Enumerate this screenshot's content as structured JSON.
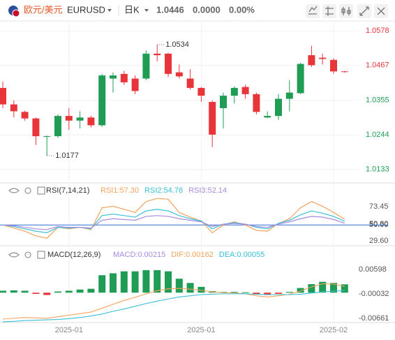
{
  "header": {
    "pair_cn": "欧元/美元",
    "symbol": "EURUSD",
    "period": "日K",
    "price": "1.0446",
    "change": "0.0000",
    "change_pct": "0.00%"
  },
  "chart_data": [
    {
      "type": "candlestick",
      "up_color": "#1f9d55",
      "down_color": "#e8353a",
      "categories": [
        null,
        null,
        null,
        null,
        null,
        null,
        "2025-01",
        null,
        null,
        null,
        null,
        null,
        null,
        null,
        null,
        null,
        null,
        null,
        "2025-01",
        null,
        null,
        null,
        null,
        null,
        null,
        null,
        null,
        null,
        null,
        null,
        "2025-02",
        null
      ],
      "open": [
        1.0395,
        1.0342,
        1.0318,
        1.0297,
        1.0238,
        1.024,
        1.0305,
        1.029,
        1.03,
        1.0275,
        1.0425,
        1.044,
        1.0425,
        1.0425,
        1.0505,
        1.0505,
        1.0445,
        1.0425,
        1.0395,
        1.035,
        1.033,
        1.037,
        1.0398,
        1.0375,
        1.03,
        1.0305,
        1.036,
        1.0378,
        1.05,
        1.0492,
        1.0485,
        1.0448
      ],
      "high": [
        1.0415,
        1.0355,
        1.0322,
        1.03,
        1.0242,
        1.031,
        1.033,
        1.032,
        1.0305,
        1.044,
        1.0445,
        1.045,
        1.0435,
        1.0515,
        1.0534,
        1.0508,
        1.047,
        1.0455,
        1.0398,
        1.0355,
        1.038,
        1.04,
        1.0405,
        1.038,
        1.032,
        1.0375,
        1.042,
        1.0475,
        1.053,
        1.0505,
        1.049,
        1.045
      ],
      "low": [
        1.033,
        1.03,
        1.029,
        1.0212,
        1.0177,
        1.0235,
        1.026,
        1.0265,
        1.0268,
        1.027,
        1.038,
        1.0405,
        1.0375,
        1.042,
        1.048,
        1.043,
        1.0425,
        1.039,
        1.035,
        1.0205,
        1.0265,
        1.0345,
        1.036,
        1.031,
        1.0298,
        1.0292,
        1.032,
        1.0375,
        1.0462,
        1.047,
        1.044,
        1.0444
      ],
      "close": [
        1.0342,
        1.032,
        1.0297,
        1.024,
        1.024,
        1.0305,
        1.029,
        1.03,
        1.0275,
        1.0435,
        1.0435,
        1.0413,
        1.0385,
        1.0505,
        1.05,
        1.044,
        1.0432,
        1.0395,
        1.037,
        1.0245,
        1.037,
        1.0395,
        1.0375,
        1.0318,
        1.0305,
        1.036,
        1.038,
        1.0472,
        1.0468,
        1.0488,
        1.0448,
        1.0446
      ],
      "ylim": [
        1.009,
        1.061
      ],
      "yticks": [
        1.0578,
        1.0467,
        1.0355,
        1.0244,
        1.0133
      ],
      "grid": true,
      "max_label": 1.0534,
      "min_label": 1.0177
    },
    {
      "type": "line",
      "title": "RSI(7,14,21)",
      "ylim": [
        22,
        96
      ],
      "yticks": [
        73.45,
        {
          "value": 50.8,
          "label": "50.80"
        },
        {
          "value": 50,
          "label": "50.00"
        },
        {
          "value": 29.6,
          "label": "29.60"
        }
      ],
      "levels": [
        50
      ],
      "level_color": "#2f6fd6",
      "series": [
        {
          "name": "RSI1",
          "label": "RSI1:57.30",
          "color": "#f5a25d",
          "values": [
            50,
            46,
            42,
            36,
            33,
            47,
            45,
            47,
            44,
            72,
            74,
            70,
            66,
            80,
            84,
            83,
            66,
            60,
            55,
            40,
            50,
            54,
            50,
            43,
            42,
            52,
            58,
            72,
            80,
            74,
            66,
            57.3
          ]
        },
        {
          "name": "RSI2",
          "label": "RSI2:54.76",
          "color": "#38c0d6",
          "values": [
            50,
            48,
            45,
            42,
            40,
            47,
            46,
            47,
            45,
            62,
            64,
            62,
            60,
            68,
            70,
            68,
            62,
            58,
            55,
            45,
            51,
            53,
            51,
            47,
            45,
            52,
            56,
            63,
            68,
            65,
            61,
            54.76
          ]
        },
        {
          "name": "RSI3",
          "label": "RSI3:52.14",
          "color": "#a98be0",
          "values": [
            50,
            49,
            47,
            45,
            44,
            48,
            47,
            47,
            46,
            56,
            58,
            57,
            56,
            61,
            62,
            61,
            58,
            56,
            54,
            48,
            51,
            52,
            51,
            48,
            47,
            51,
            54,
            58,
            61,
            60,
            57,
            52.14
          ]
        }
      ]
    },
    {
      "type": "macd",
      "title": "MACD(12,26,9)",
      "ylim": [
        -0.0077,
        0.009
      ],
      "yticks": [
        0.00598,
        -0.00032,
        -0.00661
      ],
      "histogram": {
        "label": "MACD:0.00215",
        "up_color": "#1f9d55",
        "down_color": "#e8353a",
        "values": [
          0.0005,
          0.0006,
          0.0005,
          -0.0003,
          -0.0006,
          0.0003,
          0.0005,
          0.0008,
          0.001,
          0.0045,
          0.005,
          0.0055,
          0.0055,
          0.0058,
          0.0058,
          0.0055,
          0.0036,
          0.0025,
          0.0015,
          0.0004,
          0.0002,
          0.0002,
          0.0001,
          -0.0005,
          -0.0006,
          -0.0003,
          0.0002,
          0.0012,
          0.0022,
          0.0028,
          0.0025,
          0.00215
        ]
      },
      "series": [
        {
          "name": "DIF",
          "label": "DIF:0.00162",
          "color": "#f5a25d",
          "values": [
            -0.0068,
            -0.0066,
            -0.0064,
            -0.0065,
            -0.0066,
            -0.0062,
            -0.0058,
            -0.0054,
            -0.005,
            -0.004,
            -0.003,
            -0.002,
            -0.0012,
            -0.0003,
            0.0005,
            0.001,
            0.0011,
            0.0009,
            0.0006,
            0.0002,
            0,
            -0.0001,
            -0.0003,
            -0.0008,
            -0.0011,
            -0.0008,
            -0.0004,
            0.0004,
            0.0015,
            0.0023,
            0.0022,
            0.00162
          ]
        },
        {
          "name": "DEA",
          "label": "DEA:0.00055",
          "color": "#38c0d6",
          "values": [
            -0.0075,
            -0.0074,
            -0.0072,
            -0.0071,
            -0.007,
            -0.0069,
            -0.0067,
            -0.0064,
            -0.006,
            -0.0055,
            -0.0048,
            -0.0042,
            -0.0035,
            -0.0028,
            -0.0022,
            -0.0016,
            -0.0011,
            -0.0008,
            -0.0005,
            -0.0004,
            -0.0003,
            -0.0003,
            -0.0003,
            -0.0004,
            -0.0005,
            -0.0005,
            -0.0005,
            -0.0004,
            -0.0001,
            0.0002,
            0.0004,
            0.00055
          ]
        }
      ]
    }
  ]
}
